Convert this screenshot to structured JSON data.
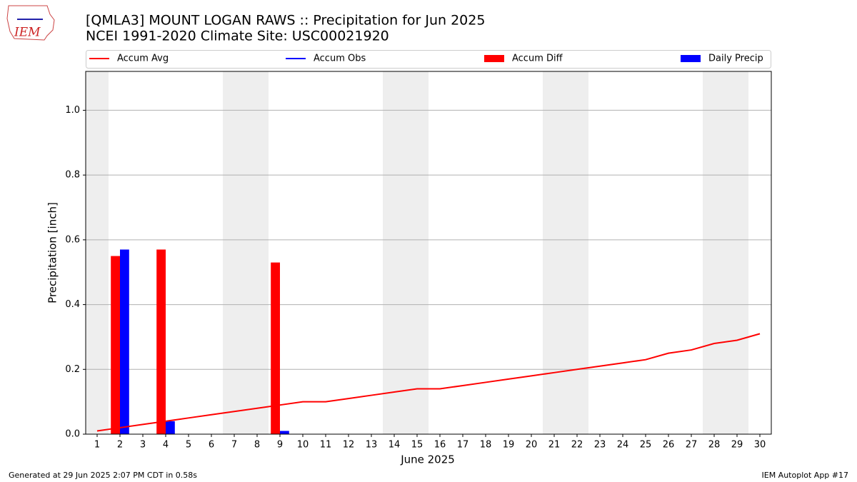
{
  "chart_data": {
    "type": "bar_line",
    "title": "[QMLA3] MOUNT LOGAN RAWS :: Precipitation for Jun 2025",
    "subtitle": "NCEI 1991-2020 Climate Site: USC00021920",
    "logo": "IEM",
    "x_label": "June 2025",
    "y_label": "Precipitation [inch]",
    "footer_left": "Generated at 29 Jun 2025 2:07 PM CDT in 0.58s",
    "footer_right": "IEM Autoplot App #17",
    "x": [
      1,
      2,
      3,
      4,
      5,
      6,
      7,
      8,
      9,
      10,
      11,
      12,
      13,
      14,
      15,
      16,
      17,
      18,
      19,
      20,
      21,
      22,
      23,
      24,
      25,
      26,
      27,
      28,
      29,
      30
    ],
    "xlim": [
      0.5,
      30.5
    ],
    "xticks": [
      1,
      2,
      3,
      4,
      5,
      6,
      7,
      8,
      9,
      10,
      11,
      12,
      13,
      14,
      15,
      16,
      17,
      18,
      19,
      20,
      21,
      22,
      23,
      24,
      25,
      26,
      27,
      28,
      29,
      30
    ],
    "ylim": [
      0,
      1.12
    ],
    "yticks": [
      {
        "value": 0,
        "label": "0.0"
      },
      {
        "value": 0.2,
        "label": "0.2"
      },
      {
        "value": 0.4,
        "label": "0.4"
      },
      {
        "value": 0.6,
        "label": "0.6"
      },
      {
        "value": 0.8,
        "label": "0.8"
      },
      {
        "value": 1.0,
        "label": "1.0"
      }
    ],
    "grid": true,
    "shaded_days": [
      1,
      7,
      8,
      14,
      15,
      21,
      22,
      28,
      29
    ],
    "shade_color": "#eeeeee",
    "series": [
      {
        "name": "Accum Avg",
        "kind": "line",
        "color": "#ff0000",
        "values": [
          0.01,
          0.02,
          0.03,
          0.04,
          0.05,
          0.06,
          0.07,
          0.08,
          0.09,
          0.1,
          0.1,
          0.11,
          0.12,
          0.13,
          0.14,
          0.14,
          0.15,
          0.16,
          0.17,
          0.18,
          0.19,
          0.2,
          0.21,
          0.22,
          0.23,
          0.25,
          0.26,
          0.28,
          0.29,
          0.31
        ]
      },
      {
        "name": "Accum Obs",
        "kind": "line",
        "color": "#0000ff"
      },
      {
        "name": "Accum Diff",
        "kind": "bar",
        "color": "#ff0000",
        "offset": -1,
        "values": [
          null,
          0.55,
          null,
          0.57,
          null,
          null,
          null,
          null,
          0.53,
          null,
          null,
          null,
          null,
          null,
          null,
          null,
          null,
          null,
          null,
          null,
          null,
          null,
          null,
          null,
          null,
          null,
          null,
          null,
          null,
          null
        ]
      },
      {
        "name": "Daily Precip",
        "kind": "bar",
        "color": "#0000ff",
        "offset": 1,
        "values": [
          null,
          0.57,
          null,
          0.04,
          null,
          null,
          null,
          null,
          0.01,
          null,
          null,
          null,
          null,
          null,
          null,
          null,
          null,
          null,
          null,
          null,
          null,
          null,
          null,
          null,
          null,
          null,
          null,
          null,
          null,
          null
        ]
      }
    ]
  }
}
